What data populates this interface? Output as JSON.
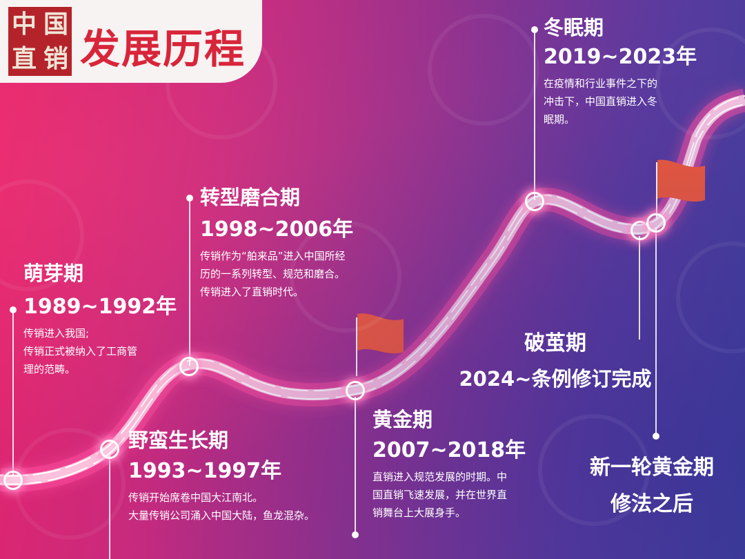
{
  "header": {
    "logo_chars": [
      "中",
      "国",
      "直",
      "销"
    ],
    "title": "发展历程"
  },
  "stages": [
    {
      "name": "萌芽期",
      "years": "1989~1992年",
      "desc": [
        "传销进入我国;",
        "传销正式被纳入了工商管",
        "理的范畴。"
      ]
    },
    {
      "name": "野蛮生长期",
      "years": "1993~1997年",
      "desc": [
        "传销开始席卷中国大江南北。",
        "大量传销公司涌入中国大陆，鱼龙混杂。"
      ]
    },
    {
      "name": "转型磨合期",
      "years": "1998~2006年",
      "desc": [
        "传销作为“舶来品”进入中国所经",
        "历的一系列转型、规范和磨合。",
        "传销进入了直销时代。"
      ]
    },
    {
      "name": "黄金期",
      "years": "2007~2018年",
      "desc": [
        "直销进入规范发展的时期。中",
        "国直销飞速发展，并在世界直",
        "销舞台上大展身手。"
      ]
    },
    {
      "name": "冬眠期",
      "years": "2019~2023年",
      "desc": [
        "在疫情和行业事件之下的",
        "冲击下，中国直销进入冬",
        "眠期。"
      ]
    },
    {
      "name": "破茧期",
      "years": "2024~条例修订完成"
    },
    {
      "name": "新一轮黄金期",
      "years": "修法之后"
    }
  ],
  "colors": {
    "background_left": "#e8246a",
    "background_right": "#3f3f9c",
    "header_title": "#d8253a",
    "logo_bg": "#b5232a",
    "flag": "#f05a3a"
  }
}
